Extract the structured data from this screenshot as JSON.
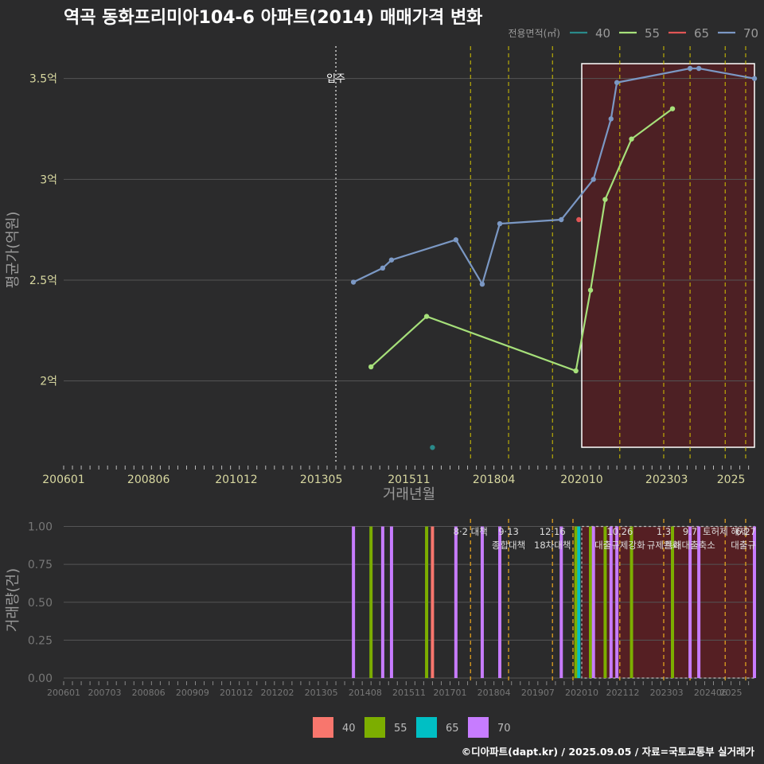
{
  "title": "역곡 동화프리미아104-6 아파트(2014) 매매가격 변화",
  "footer": "©디아파트(dapt.kr) / 2025.09.05 / 자료=국토교통부 실거래가",
  "colors": {
    "background": "#2b2b2c",
    "grid": "#555555",
    "policy_line": "#d4c400",
    "policy_line_bottom": "#e0a020",
    "highlight_fill": "#5a1e22",
    "highlight_border": "#ffffff",
    "text_axis": "#d8d8a0",
    "text_muted": "#9a9a9a"
  },
  "chart_data": [
    {
      "type": "line",
      "xlabel": "거래년월",
      "ylabel": "평균가(억원)",
      "x_tick_labels": [
        "200601",
        "200806",
        "201012",
        "201305",
        "201511",
        "201804",
        "202010",
        "202303",
        "2025"
      ],
      "x_range": [
        "2006-01",
        "2025-09"
      ],
      "y_ticks": [
        2.0,
        2.5,
        3.0,
        3.5
      ],
      "y_tick_labels": [
        "2억",
        "2.5억",
        "3억",
        "3.5억"
      ],
      "ylim": [
        1.6,
        3.7
      ],
      "legend_title": "전용면적(㎡)",
      "legend_position": "top-right",
      "series": [
        {
          "name": "40",
          "color": "#2a8a8a",
          "points": [
            [
              "2016-07",
              1.67
            ]
          ]
        },
        {
          "name": "55",
          "color": "#a6e07a",
          "points": [
            [
              "2014-10",
              2.07
            ],
            [
              "2016-05",
              2.32
            ],
            [
              "2020-08",
              2.05
            ],
            [
              "2021-01",
              2.45
            ],
            [
              "2021-06",
              2.9
            ],
            [
              "2022-03",
              3.2
            ],
            [
              "2023-05",
              3.35
            ]
          ]
        },
        {
          "name": "65",
          "color": "#e05555",
          "points": [
            [
              "2020-09",
              2.8
            ]
          ]
        },
        {
          "name": "70",
          "color": "#7b98c4",
          "points": [
            [
              "2014-04",
              2.49
            ],
            [
              "2015-02",
              2.56
            ],
            [
              "2015-05",
              2.6
            ],
            [
              "2017-03",
              2.7
            ],
            [
              "2017-12",
              2.48
            ],
            [
              "2018-06",
              2.78
            ],
            [
              "2020-03",
              2.8
            ],
            [
              "2021-02",
              3.0
            ],
            [
              "2021-08",
              3.3
            ],
            [
              "2021-10",
              3.48
            ],
            [
              "2023-11",
              3.55
            ],
            [
              "2024-02",
              3.55
            ],
            [
              "2025-09",
              3.5
            ]
          ]
        }
      ],
      "reference_lines": [
        {
          "date": "2013-10",
          "label": "입주",
          "style": "dotted"
        },
        {
          "date": "2017-08",
          "style": "dashed"
        },
        {
          "date": "2018-09",
          "style": "dashed"
        },
        {
          "date": "2019-12",
          "style": "dashed"
        },
        {
          "date": "2021-11",
          "style": "dashed"
        },
        {
          "date": "2023-02",
          "style": "dashed"
        },
        {
          "date": "2023-11",
          "style": "dashed"
        },
        {
          "date": "2024-11",
          "style": "dashed"
        },
        {
          "date": "2025-06",
          "style": "dashed"
        }
      ],
      "highlight_range": [
        "2020-10",
        "2025-09"
      ]
    },
    {
      "type": "bar",
      "ylabel": "거래량(건)",
      "x_tick_labels": [
        "200601",
        "200703",
        "200806",
        "200909",
        "201012",
        "201202",
        "201305",
        "201408",
        "201511",
        "201701",
        "201804",
        "201907",
        "202010",
        "202112",
        "202303",
        "202406",
        "2025"
      ],
      "y_ticks": [
        0.0,
        0.25,
        0.5,
        0.75,
        1.0
      ],
      "y_tick_labels": [
        "0.00",
        "0.25",
        "0.50",
        "0.75",
        "1.00"
      ],
      "ylim": [
        0,
        1.05
      ],
      "legend_position": "bottom",
      "series": [
        {
          "name": "40",
          "color": "#f8766d",
          "dates": [
            "2016-07"
          ]
        },
        {
          "name": "55",
          "color": "#7cae00",
          "dates": [
            "2014-10",
            "2016-05",
            "2020-08",
            "2021-01",
            "2021-06",
            "2022-03",
            "2023-05"
          ]
        },
        {
          "name": "65",
          "color": "#00bfc4",
          "dates": [
            "2020-09"
          ]
        },
        {
          "name": "70",
          "color": "#c77cff",
          "dates": [
            "2014-04",
            "2015-02",
            "2015-05",
            "2017-03",
            "2017-12",
            "2018-06",
            "2020-03",
            "2021-02",
            "2021-08",
            "2021-10",
            "2023-11",
            "2024-02",
            "2025-09"
          ]
        }
      ],
      "policy_annotations": [
        {
          "date": "2017-08",
          "lines": [
            "8·2 대책"
          ]
        },
        {
          "date": "2018-09",
          "lines": [
            "9·13",
            "종합대책"
          ]
        },
        {
          "date": "2019-12",
          "lines": [
            "12·16",
            "18차대책"
          ]
        },
        {
          "date": "2021-11",
          "lines": [
            "10.26",
            "대출규제강화"
          ]
        },
        {
          "date": "2023-02",
          "lines": [
            "1.3",
            "규제완화"
          ]
        },
        {
          "date": "2023-11",
          "lines": [
            "9.7",
            "특례대출축소"
          ]
        },
        {
          "date": "2024-11",
          "lines": [
            "토허제 해제"
          ]
        },
        {
          "date": "2025-06",
          "lines": [
            "6.27",
            "대출규"
          ]
        }
      ],
      "policy_dates_extra": [
        "2020-07"
      ],
      "highlight_range": [
        "2020-10",
        "2025-09"
      ]
    }
  ]
}
